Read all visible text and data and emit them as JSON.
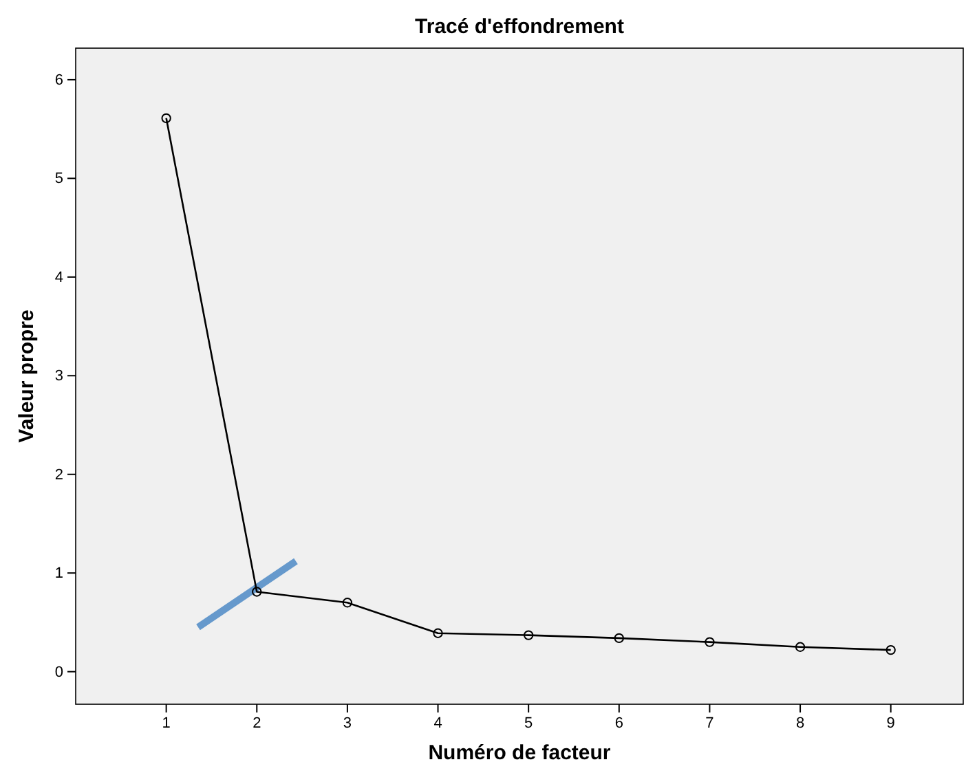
{
  "chart_data": {
    "type": "line",
    "title": "Tracé d'effondrement",
    "xlabel": "Numéro de facteur",
    "ylabel": "Valeur propre",
    "x": [
      1,
      2,
      3,
      4,
      5,
      6,
      7,
      8,
      9
    ],
    "series": [
      {
        "color": "#000000",
        "values": [
          5.61,
          0.81,
          0.7,
          0.39,
          0.37,
          0.34,
          0.3,
          0.25,
          0.22
        ]
      }
    ],
    "xlim": [
      0,
      9.8
    ],
    "xticks": [
      1,
      2,
      3,
      4,
      5,
      6,
      7,
      8,
      9
    ],
    "ylim": [
      -0.33,
      6.32
    ],
    "yticks": [
      0,
      1,
      2,
      3,
      4,
      5,
      6
    ],
    "grid": false,
    "marker": "circle",
    "line_style": "solid"
  }
}
